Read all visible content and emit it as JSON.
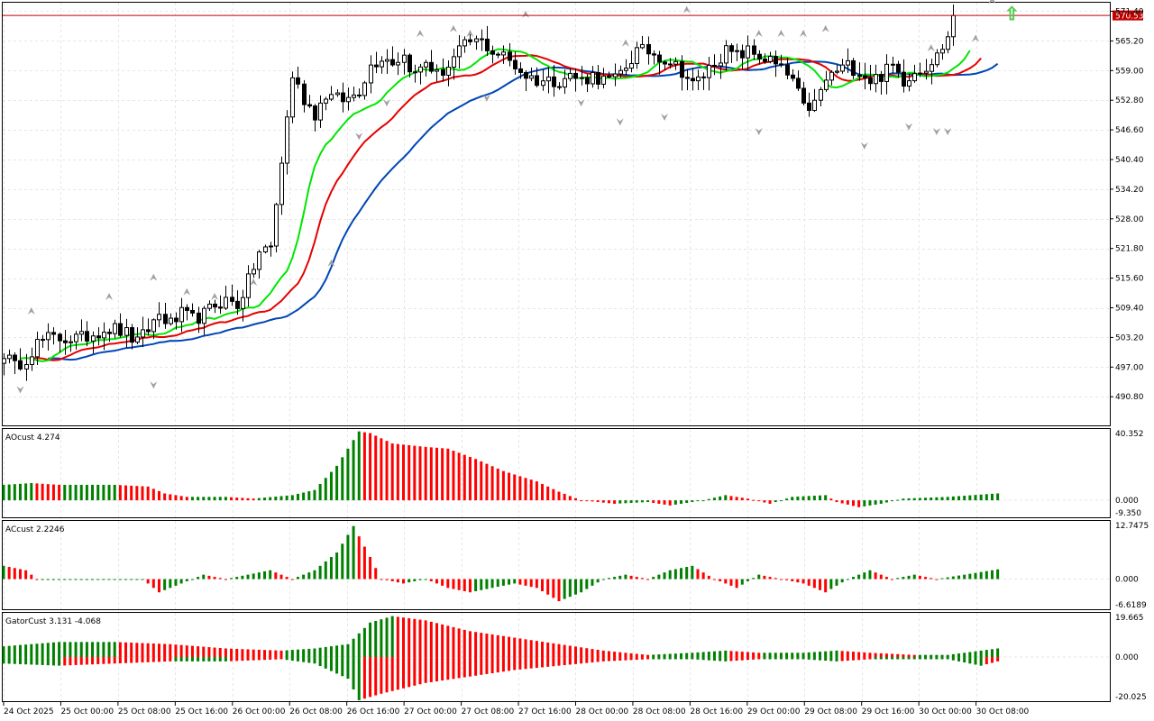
{
  "chart_data": {
    "type": "candlestick",
    "colors": {
      "up": "#008000",
      "down": "#ff0000",
      "candle": "#000000",
      "jaw": "#0046b4",
      "teeth": "#e60000",
      "lips": "#00e600",
      "fractal": "#a0a0a0",
      "signal": "#66dd66",
      "price_line": "#c00000"
    },
    "current_price": 570.53,
    "current_price_label": "570.53",
    "price_axis": {
      "ylim": [
        485.0,
        573.0
      ],
      "ticks": [
        "571.40",
        "565.20",
        "559.00",
        "552.80",
        "546.60",
        "540.40",
        "534.20",
        "528.00",
        "521.80",
        "515.60",
        "509.40",
        "503.20",
        "497.00",
        "490.80"
      ]
    },
    "time_labels": [
      "24 Oct 2025",
      "25 Oct 00:00",
      "25 Oct 08:00",
      "25 Oct 16:00",
      "26 Oct 00:00",
      "26 Oct 08:00",
      "26 Oct 16:00",
      "27 Oct 00:00",
      "27 Oct 08:00",
      "27 Oct 16:00",
      "28 Oct 00:00",
      "28 Oct 08:00",
      "28 Oct 16:00",
      "29 Oct 00:00",
      "29 Oct 08:00",
      "29 Oct 16:00",
      "30 Oct 00:00",
      "30 Oct 08:00"
    ],
    "close_anchors": [
      [
        0,
        500
      ],
      [
        2,
        497
      ],
      [
        4,
        499
      ],
      [
        6,
        502
      ],
      [
        8,
        503
      ],
      [
        10,
        503
      ],
      [
        12,
        503
      ],
      [
        14,
        503
      ],
      [
        16,
        504
      ],
      [
        18,
        505
      ],
      [
        20,
        505
      ],
      [
        22,
        504
      ],
      [
        24,
        502
      ],
      [
        26,
        505
      ],
      [
        28,
        508
      ],
      [
        30,
        506
      ],
      [
        32,
        508
      ],
      [
        34,
        507
      ],
      [
        36,
        508
      ],
      [
        38,
        510
      ],
      [
        40,
        511
      ],
      [
        42,
        510
      ],
      [
        44,
        515
      ],
      [
        46,
        521
      ],
      [
        48,
        522
      ],
      [
        50,
        540
      ],
      [
        52,
        558
      ],
      [
        54,
        553
      ],
      [
        56,
        550
      ],
      [
        58,
        554
      ],
      [
        60,
        553
      ],
      [
        62,
        553
      ],
      [
        64,
        555
      ],
      [
        66,
        560
      ],
      [
        68,
        562
      ],
      [
        70,
        561
      ],
      [
        72,
        562
      ],
      [
        74,
        558
      ],
      [
        76,
        561
      ],
      [
        78,
        558
      ],
      [
        80,
        560
      ],
      [
        82,
        563
      ],
      [
        84,
        565
      ],
      [
        86,
        565
      ],
      [
        88,
        563
      ],
      [
        90,
        562
      ],
      [
        92,
        560
      ],
      [
        94,
        558
      ],
      [
        96,
        557
      ],
      [
        98,
        557
      ],
      [
        100,
        557
      ],
      [
        102,
        558
      ],
      [
        104,
        557
      ],
      [
        106,
        558
      ],
      [
        108,
        557
      ],
      [
        110,
        557
      ],
      [
        112,
        560
      ],
      [
        114,
        563
      ],
      [
        116,
        563
      ],
      [
        118,
        562
      ],
      [
        120,
        561
      ],
      [
        122,
        559
      ],
      [
        124,
        556
      ],
      [
        126,
        558
      ],
      [
        128,
        561
      ],
      [
        130,
        563
      ],
      [
        132,
        562
      ],
      [
        134,
        563
      ],
      [
        136,
        562
      ],
      [
        138,
        561
      ],
      [
        140,
        559
      ],
      [
        142,
        557
      ],
      [
        144,
        551
      ],
      [
        146,
        552
      ],
      [
        148,
        557
      ],
      [
        150,
        559
      ],
      [
        152,
        560
      ],
      [
        154,
        559
      ],
      [
        156,
        557
      ],
      [
        158,
        558
      ],
      [
        160,
        560
      ],
      [
        162,
        557
      ],
      [
        164,
        559
      ],
      [
        166,
        560
      ],
      [
        168,
        562
      ],
      [
        170,
        566
      ],
      [
        171,
        570.5
      ]
    ],
    "fractals_up": [
      [
        5,
        508
      ],
      [
        19,
        511
      ],
      [
        27,
        515
      ],
      [
        33,
        512
      ],
      [
        38,
        511
      ],
      [
        45,
        514
      ],
      [
        59,
        518
      ],
      [
        75,
        566
      ],
      [
        81,
        567
      ],
      [
        84,
        566
      ],
      [
        94,
        570
      ],
      [
        112,
        564
      ],
      [
        123,
        571
      ],
      [
        136,
        566
      ],
      [
        140,
        566
      ],
      [
        144,
        566
      ],
      [
        148,
        567
      ],
      [
        167,
        563
      ],
      [
        175,
        565
      ],
      [
        178,
        573
      ]
    ],
    "fractals_down": [
      [
        3,
        493
      ],
      [
        27,
        494
      ],
      [
        64,
        546
      ],
      [
        69,
        553
      ],
      [
        87,
        554
      ],
      [
        104,
        553
      ],
      [
        111,
        549
      ],
      [
        119,
        550
      ],
      [
        136,
        547
      ],
      [
        155,
        544
      ],
      [
        163,
        548
      ],
      [
        168,
        547
      ],
      [
        170,
        547
      ]
    ],
    "buy_signal_label": "⇧",
    "panes": [
      {
        "label": "AOcust 4.274",
        "max_label": "40.352",
        "zero_label": "0.000",
        "min_label": "-9.350",
        "range": [
          -9.35,
          40.352
        ],
        "anchors": [
          [
            0,
            9
          ],
          [
            5,
            10
          ],
          [
            10,
            9
          ],
          [
            20,
            9
          ],
          [
            26,
            8
          ],
          [
            29,
            4
          ],
          [
            33,
            2
          ],
          [
            40,
            2
          ],
          [
            45,
            1
          ],
          [
            52,
            3
          ],
          [
            56,
            6
          ],
          [
            60,
            20
          ],
          [
            64,
            40
          ],
          [
            66,
            39
          ],
          [
            70,
            33
          ],
          [
            76,
            31
          ],
          [
            80,
            30
          ],
          [
            85,
            24
          ],
          [
            90,
            17
          ],
          [
            96,
            11
          ],
          [
            100,
            5
          ],
          [
            104,
            0
          ],
          [
            110,
            -2
          ],
          [
            116,
            -1
          ],
          [
            120,
            -3
          ],
          [
            126,
            0
          ],
          [
            130,
            3
          ],
          [
            134,
            1
          ],
          [
            138,
            -2
          ],
          [
            142,
            2
          ],
          [
            148,
            3
          ],
          [
            150,
            -1
          ],
          [
            154,
            -4
          ],
          [
            158,
            -2
          ],
          [
            162,
            1
          ],
          [
            170,
            2
          ],
          [
            179,
            4
          ]
        ],
        "colors_mode": "momentum"
      },
      {
        "label": "ACcust 2.2246",
        "max_label": "12.7475",
        "zero_label": "0.000",
        "min_label": "-6.6189",
        "range": [
          -6.6189,
          12.7475
        ],
        "anchors": [
          [
            0,
            3
          ],
          [
            4,
            2
          ],
          [
            6,
            0
          ],
          [
            25,
            0
          ],
          [
            28,
            -3
          ],
          [
            32,
            -1
          ],
          [
            36,
            1
          ],
          [
            40,
            0
          ],
          [
            44,
            1
          ],
          [
            48,
            2
          ],
          [
            52,
            0
          ],
          [
            56,
            2
          ],
          [
            60,
            6
          ],
          [
            63,
            12
          ],
          [
            66,
            5
          ],
          [
            68,
            0
          ],
          [
            72,
            -1
          ],
          [
            76,
            0
          ],
          [
            80,
            -2
          ],
          [
            84,
            -3
          ],
          [
            88,
            -2
          ],
          [
            92,
            -1
          ],
          [
            96,
            -2
          ],
          [
            100,
            -5
          ],
          [
            104,
            -3
          ],
          [
            108,
            0
          ],
          [
            112,
            1
          ],
          [
            116,
            0
          ],
          [
            120,
            2
          ],
          [
            124,
            3
          ],
          [
            128,
            0
          ],
          [
            132,
            -2
          ],
          [
            136,
            1
          ],
          [
            140,
            0
          ],
          [
            144,
            -1
          ],
          [
            148,
            -3
          ],
          [
            152,
            0
          ],
          [
            156,
            2
          ],
          [
            160,
            0
          ],
          [
            164,
            1
          ],
          [
            168,
            0
          ],
          [
            179,
            2.2
          ]
        ],
        "colors_mode": "momentum"
      },
      {
        "label": "GatorCust 3.131 -4.068",
        "max_label": "19.665",
        "zero_label": "0.000",
        "min_label": "-20.025",
        "range": [
          -20.025,
          19.665
        ],
        "upper_anchors": [
          [
            0,
            5
          ],
          [
            10,
            7
          ],
          [
            20,
            7
          ],
          [
            30,
            6
          ],
          [
            40,
            4
          ],
          [
            50,
            3
          ],
          [
            56,
            4
          ],
          [
            62,
            6
          ],
          [
            66,
            16
          ],
          [
            70,
            19
          ],
          [
            76,
            17
          ],
          [
            84,
            12
          ],
          [
            92,
            9
          ],
          [
            100,
            6
          ],
          [
            108,
            3
          ],
          [
            116,
            1
          ],
          [
            124,
            2
          ],
          [
            130,
            3
          ],
          [
            136,
            2
          ],
          [
            144,
            2
          ],
          [
            150,
            3
          ],
          [
            156,
            2
          ],
          [
            164,
            1
          ],
          [
            170,
            1
          ],
          [
            179,
            4
          ]
        ],
        "lower_anchors": [
          [
            0,
            -3
          ],
          [
            10,
            -4
          ],
          [
            20,
            -3
          ],
          [
            30,
            -2
          ],
          [
            40,
            -2
          ],
          [
            50,
            -1
          ],
          [
            56,
            -3
          ],
          [
            62,
            -10
          ],
          [
            64,
            -20
          ],
          [
            68,
            -17
          ],
          [
            76,
            -12
          ],
          [
            84,
            -9
          ],
          [
            92,
            -6
          ],
          [
            100,
            -4
          ],
          [
            108,
            -2
          ],
          [
            116,
            -1
          ],
          [
            124,
            -1
          ],
          [
            130,
            -2
          ],
          [
            136,
            -1
          ],
          [
            144,
            -1
          ],
          [
            150,
            -2
          ],
          [
            156,
            -1
          ],
          [
            164,
            -1
          ],
          [
            170,
            -1
          ],
          [
            176,
            -4
          ],
          [
            179,
            -2
          ]
        ]
      }
    ]
  }
}
